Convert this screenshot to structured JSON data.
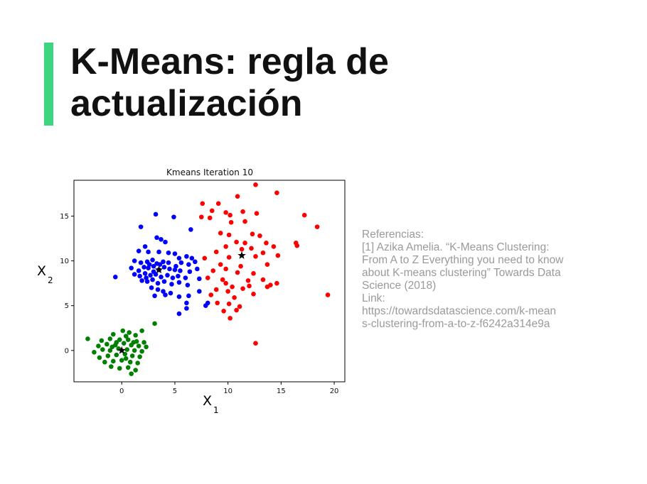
{
  "slide": {
    "title_line1": "K-Means: regla de",
    "title_line2": "actualización",
    "accent_color": "#3dd57f"
  },
  "references": {
    "heading": "Referencias:",
    "lines": [
      "[1] Azika Amelia. “K-Means Clustering:",
      "From A to Z Everything you need to know",
      "about K-means clustering” Towards Data",
      "Science (2018)",
      "Link:",
      "https://towardsdatascience.com/k-mean",
      "s-clustering-from-a-to-z-f6242a314e9a"
    ]
  },
  "chart_data": {
    "type": "scatter",
    "title": "Kmeans Iteration 10",
    "xlabel": "X",
    "xlabel_sub": "1",
    "ylabel": "X",
    "ylabel_sub": "2",
    "xlim": [
      -4.5,
      21
    ],
    "ylim": [
      -3.5,
      19
    ],
    "xticks": [
      0,
      5,
      10,
      15,
      20
    ],
    "yticks": [
      0,
      5,
      10,
      15
    ],
    "grid": false,
    "series": [
      {
        "color": "#0000ff",
        "points": [
          [
            3.2,
            15.2
          ],
          [
            4.9,
            14.9
          ],
          [
            6.5,
            13.5
          ],
          [
            1.8,
            13.8
          ],
          [
            3.3,
            12.6
          ],
          [
            3.7,
            12.4
          ],
          [
            4.1,
            12.1
          ],
          [
            2.2,
            11.6
          ],
          [
            1.6,
            11.1
          ],
          [
            2.5,
            11.0
          ],
          [
            3.5,
            11.0
          ],
          [
            4.4,
            10.9
          ],
          [
            5.0,
            10.8
          ],
          [
            5.4,
            10.3
          ],
          [
            6.1,
            10.5
          ],
          [
            6.6,
            10.3
          ],
          [
            1.2,
            10.0
          ],
          [
            1.8,
            9.8
          ],
          [
            2.4,
            9.9
          ],
          [
            2.9,
            10.1
          ],
          [
            3.3,
            9.7
          ],
          [
            3.9,
            9.9
          ],
          [
            4.4,
            9.8
          ],
          [
            5.1,
            9.4
          ],
          [
            5.6,
            9.8
          ],
          [
            6.3,
            9.6
          ],
          [
            6.9,
            9.9
          ],
          [
            0.9,
            9.2
          ],
          [
            1.6,
            8.9
          ],
          [
            2.1,
            9.3
          ],
          [
            2.5,
            9.2
          ],
          [
            3.0,
            9.4
          ],
          [
            3.5,
            9.0
          ],
          [
            4.0,
            9.3
          ],
          [
            4.5,
            9.1
          ],
          [
            5.0,
            9.0
          ],
          [
            5.5,
            8.9
          ],
          [
            6.4,
            8.8
          ],
          [
            7.1,
            9.1
          ],
          [
            1.2,
            8.5
          ],
          [
            1.7,
            8.3
          ],
          [
            2.2,
            8.6
          ],
          [
            2.7,
            8.4
          ],
          [
            3.2,
            8.5
          ],
          [
            3.7,
            8.2
          ],
          [
            4.3,
            8.4
          ],
          [
            4.8,
            8.1
          ],
          [
            5.3,
            8.3
          ],
          [
            6.0,
            8.1
          ],
          [
            7.3,
            8.0
          ],
          [
            -0.6,
            8.2
          ],
          [
            1.9,
            7.8
          ],
          [
            2.4,
            7.7
          ],
          [
            2.9,
            7.9
          ],
          [
            3.4,
            7.5
          ],
          [
            4.0,
            7.7
          ],
          [
            4.7,
            7.4
          ],
          [
            5.4,
            7.6
          ],
          [
            6.2,
            7.3
          ],
          [
            2.8,
            7.0
          ],
          [
            3.4,
            6.8
          ],
          [
            3.9,
            6.6
          ],
          [
            4.6,
            6.4
          ],
          [
            5.4,
            6.0
          ],
          [
            6.3,
            6.1
          ],
          [
            7.3,
            6.6
          ],
          [
            3.1,
            6.1
          ],
          [
            4.1,
            6.2
          ],
          [
            6.1,
            5.3
          ],
          [
            6.1,
            4.7
          ],
          [
            5.4,
            4.1
          ],
          [
            7.9,
            5.0
          ],
          [
            8.1,
            5.3
          ],
          [
            2.6,
            9.6
          ],
          [
            3.0,
            8.8
          ],
          [
            2.3,
            8.1
          ],
          [
            3.6,
            9.6
          ]
        ]
      },
      {
        "color": "#ff0000",
        "points": [
          [
            12.6,
            18.5
          ],
          [
            14.6,
            17.6
          ],
          [
            10.9,
            17.2
          ],
          [
            7.6,
            16.4
          ],
          [
            9.1,
            16.4
          ],
          [
            8.5,
            15.6
          ],
          [
            9.8,
            15.4
          ],
          [
            10.2,
            15.1
          ],
          [
            11.4,
            15.5
          ],
          [
            12.7,
            15.3
          ],
          [
            17.2,
            15.1
          ],
          [
            7.5,
            14.9
          ],
          [
            8.3,
            14.8
          ],
          [
            10.3,
            14.3
          ],
          [
            11.6,
            14.4
          ],
          [
            18.4,
            13.8
          ],
          [
            9.3,
            13.1
          ],
          [
            10.1,
            12.9
          ],
          [
            12.3,
            13.0
          ],
          [
            13.0,
            12.8
          ],
          [
            10.8,
            12.1
          ],
          [
            11.6,
            12.0
          ],
          [
            13.6,
            12.0
          ],
          [
            16.4,
            12.0
          ],
          [
            9.8,
            11.6
          ],
          [
            12.2,
            11.4
          ],
          [
            14.3,
            11.6
          ],
          [
            16.5,
            11.7
          ],
          [
            8.9,
            11.0
          ],
          [
            11.3,
            11.3
          ],
          [
            13.3,
            10.9
          ],
          [
            7.8,
            10.3
          ],
          [
            10.1,
            10.4
          ],
          [
            12.6,
            10.5
          ],
          [
            14.7,
            10.6
          ],
          [
            9.3,
            9.6
          ],
          [
            11.2,
            9.4
          ],
          [
            13.7,
            9.6
          ],
          [
            8.6,
            8.9
          ],
          [
            10.9,
            8.7
          ],
          [
            12.4,
            8.6
          ],
          [
            8.1,
            8.1
          ],
          [
            9.5,
            7.9
          ],
          [
            11.9,
            7.8
          ],
          [
            13.3,
            7.9
          ],
          [
            9.8,
            7.5
          ],
          [
            10.4,
            7.1
          ],
          [
            12.0,
            7.2
          ],
          [
            14.0,
            7.3
          ],
          [
            14.6,
            7.5
          ],
          [
            8.9,
            6.8
          ],
          [
            10.0,
            6.6
          ],
          [
            11.4,
            6.9
          ],
          [
            13.7,
            7.1
          ],
          [
            8.4,
            6.2
          ],
          [
            10.6,
            5.9
          ],
          [
            12.4,
            6.3
          ],
          [
            19.4,
            6.2
          ],
          [
            9.0,
            5.3
          ],
          [
            10.1,
            5.2
          ],
          [
            11.1,
            4.9
          ],
          [
            9.6,
            4.4
          ],
          [
            10.8,
            4.5
          ],
          [
            10.2,
            3.6
          ],
          [
            12.6,
            0.8
          ],
          [
            9.8,
            9.1
          ]
        ]
      },
      {
        "color": "#008000",
        "points": [
          [
            0.1,
            2.2
          ],
          [
            0.7,
            2.0
          ],
          [
            1.9,
            2.2
          ],
          [
            3.1,
            3.0
          ],
          [
            -0.8,
            1.8
          ],
          [
            0.4,
            1.6
          ],
          [
            1.3,
            1.7
          ],
          [
            -1.9,
            1.1
          ],
          [
            -1.1,
            1.3
          ],
          [
            -0.2,
            1.2
          ],
          [
            0.6,
            1.2
          ],
          [
            1.4,
            1.0
          ],
          [
            2.1,
            0.9
          ],
          [
            -3.2,
            1.3
          ],
          [
            -2.2,
            0.5
          ],
          [
            -1.4,
            0.7
          ],
          [
            -0.6,
            0.6
          ],
          [
            0.2,
            0.8
          ],
          [
            0.9,
            0.6
          ],
          [
            1.6,
            0.5
          ],
          [
            2.3,
            0.4
          ],
          [
            -2.6,
            -0.2
          ],
          [
            -1.8,
            0.1
          ],
          [
            -1.1,
            0.0
          ],
          [
            -0.3,
            0.2
          ],
          [
            0.5,
            0.1
          ],
          [
            1.2,
            0.0
          ],
          [
            1.9,
            -0.1
          ],
          [
            -2.1,
            -0.8
          ],
          [
            -1.3,
            -0.6
          ],
          [
            -0.5,
            -0.5
          ],
          [
            0.3,
            -0.4
          ],
          [
            1.0,
            -0.6
          ],
          [
            1.7,
            -0.7
          ],
          [
            -1.6,
            -1.3
          ],
          [
            -0.8,
            -1.2
          ],
          [
            0.0,
            -1.1
          ],
          [
            0.8,
            -1.3
          ],
          [
            1.5,
            -1.4
          ],
          [
            -1.0,
            -1.8
          ],
          [
            -0.2,
            -2.0
          ],
          [
            0.6,
            -1.9
          ],
          [
            1.3,
            -2.2
          ],
          [
            0.9,
            -2.6
          ],
          [
            -0.5,
            0.9
          ],
          [
            0.4,
            -0.9
          ],
          [
            -0.9,
            0.4
          ],
          [
            1.1,
            0.9
          ]
        ]
      }
    ],
    "centroids": [
      [
        3.5,
        9.0
      ],
      [
        11.3,
        10.6
      ],
      [
        0.0,
        0.0
      ]
    ],
    "centroid_marker": "star",
    "centroid_color": "#000000"
  }
}
